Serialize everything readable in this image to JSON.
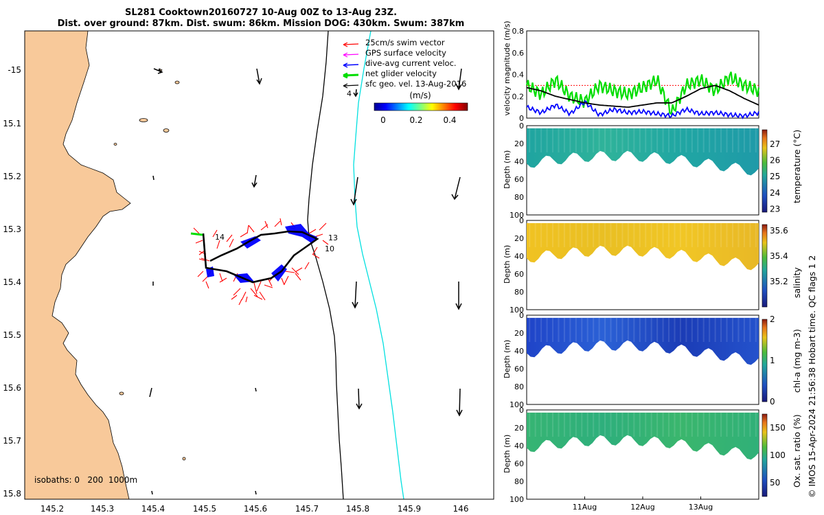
{
  "title_line1": "SL281 Cooktown20160727 10-Aug 00Z to 13-Aug 23Z.",
  "title_line2": "Dist. over ground: 87km. Dist. swum: 86km. Mission DOG: 430km. Swum: 387km",
  "map": {
    "x_ticks": [
      "145.2",
      "145.3",
      "145.4",
      "145.5",
      "145.6",
      "145.7",
      "145.8",
      "145.9",
      "146"
    ],
    "y_ticks": [
      "-15",
      "15.1",
      "15.2",
      "15.3",
      "15.4",
      "15.5",
      "15.6",
      "15.7",
      "15.8"
    ],
    "legend": [
      "25cm/s swim vector",
      "GPS surface velocity",
      "dive-avg current veloc.",
      "net glider velocity",
      "sfc geo. vel. 13-Aug-2016"
    ],
    "colorbar_title": "(m/s)",
    "colorbar_ticks": [
      "0",
      "0.2",
      "0.4"
    ],
    "isobaths_label": "isobaths: 0   200  1000m",
    "annotations": [
      "14",
      "13",
      "10",
      "4"
    ]
  },
  "footer": "© IMOS 15-Apr-2024 21:56:38 Hobart time. QC flags 1  2",
  "colors": {
    "land": "#f8c99a",
    "swim": "#ff0000",
    "net": "#00dd00",
    "current": "#0000ff",
    "track": "#000000",
    "isobath1000": "#00e0e0"
  },
  "chart_data": [
    {
      "type": "line",
      "ylabel": "velocity magnitude (m/s)",
      "ylim": [
        0,
        0.8
      ],
      "y_ticks": [
        "0",
        "0.2",
        "0.4",
        "0.6",
        "0.8"
      ],
      "x": [
        0,
        0.25,
        0.5,
        0.75,
        1,
        1.25,
        1.5,
        1.75,
        2,
        2.25,
        2.5,
        2.75,
        3,
        3.25,
        3.5,
        3.75,
        4
      ],
      "series": [
        {
          "name": "net glider velocity",
          "color": "#00dd00",
          "values": [
            0.3,
            0.22,
            0.35,
            0.2,
            0.15,
            0.3,
            0.25,
            0.22,
            0.28,
            0.35,
            0.05,
            0.3,
            0.35,
            0.25,
            0.38,
            0.3,
            0.25
          ]
        },
        {
          "name": "dive-avg current",
          "color": "#0000ff",
          "values": [
            0.1,
            0.05,
            0.12,
            0.04,
            0.15,
            0.03,
            0.08,
            0.05,
            0.06,
            0.04,
            0.02,
            0.08,
            0.04,
            0.05,
            0.03,
            0.02,
            0.05
          ]
        },
        {
          "name": "sfc geo. vel.",
          "color": "#000000",
          "values": [
            0.28,
            0.25,
            0.2,
            0.17,
            0.14,
            0.12,
            0.11,
            0.1,
            0.12,
            0.14,
            0.14,
            0.2,
            0.27,
            0.3,
            0.25,
            0.18,
            0.12
          ]
        }
      ]
    },
    {
      "type": "heatmap",
      "ylabel": "Depth (m)",
      "cbar_label": "temperature (°C)",
      "y_ticks": [
        "0",
        "20",
        "40",
        "60",
        "80",
        "100"
      ],
      "clim": [
        22.8,
        27.9
      ],
      "cbar_ticks": [
        "23",
        "24",
        "25",
        "26",
        "27"
      ]
    },
    {
      "type": "heatmap",
      "ylabel": "Depth (m)",
      "cbar_label": "salinity",
      "y_ticks": [
        "0",
        "20",
        "40",
        "60",
        "80",
        "100"
      ],
      "clim": [
        35.0,
        35.65
      ],
      "cbar_ticks": [
        "35.2",
        "35.4",
        "35.6"
      ]
    },
    {
      "type": "heatmap",
      "ylabel": "Depth (m)",
      "cbar_label": "chl-a (mg m-3)",
      "y_ticks": [
        "0",
        "20",
        "40",
        "60",
        "80",
        "100"
      ],
      "clim": [
        0,
        2
      ],
      "cbar_ticks": [
        "0",
        "1",
        "2"
      ]
    },
    {
      "type": "heatmap",
      "ylabel": "Depth (m)",
      "cbar_label": "Ox. sat. ratio (%)",
      "y_ticks": [
        "0",
        "20",
        "40",
        "60",
        "80",
        "100"
      ],
      "clim": [
        25,
        175
      ],
      "cbar_ticks": [
        "50",
        "100",
        "150"
      ],
      "x_ticks": [
        "11Aug",
        "12Aug",
        "13Aug"
      ]
    }
  ]
}
